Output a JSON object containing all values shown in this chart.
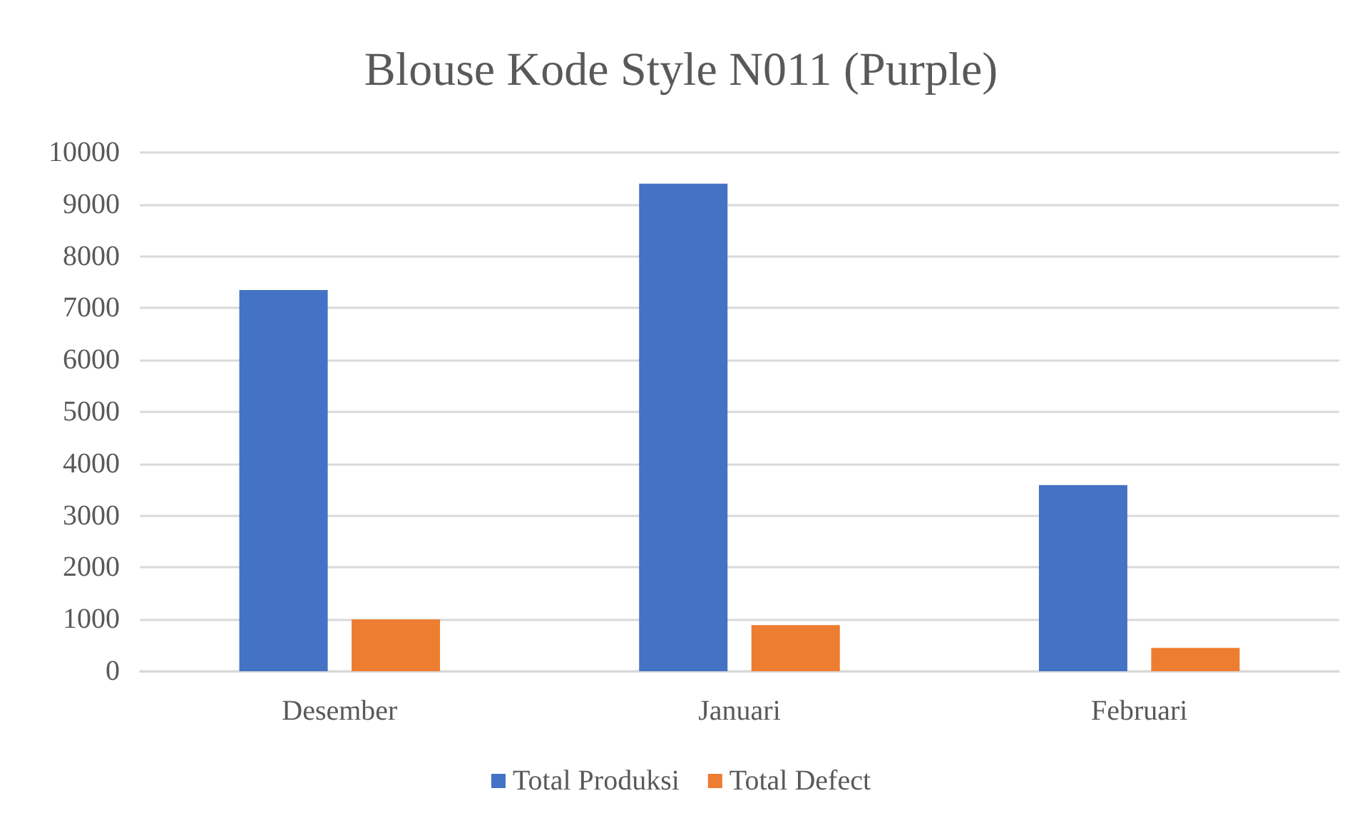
{
  "chart_data": {
    "type": "bar",
    "title": "Blouse Kode Style N011 (Purple)",
    "categories": [
      "Desember",
      "Januari",
      "Februari"
    ],
    "series": [
      {
        "name": "Total Produksi",
        "color": "#4472c4",
        "values": [
          7350,
          9400,
          3590
        ]
      },
      {
        "name": "Total Defect",
        "color": "#ed7d31",
        "values": [
          1000,
          890,
          450
        ]
      }
    ],
    "ylim": [
      0,
      10000
    ],
    "yticks": [
      0,
      1000,
      2000,
      3000,
      4000,
      5000,
      6000,
      7000,
      8000,
      9000,
      10000
    ],
    "grid": "y",
    "legend": "bottom"
  }
}
